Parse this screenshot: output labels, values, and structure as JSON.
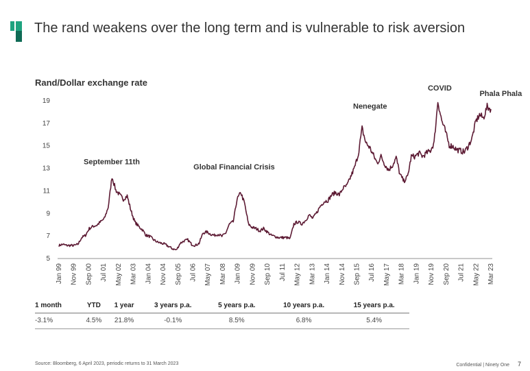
{
  "slide": {
    "title": "The rand weakens over the long term and is vulnerable to risk aversion",
    "logo": "ninety-one-logo-icon",
    "chart_heading": "Rand/Dollar exchange rate",
    "source": "Source: Bloomberg, 6 April 2023, periodic returns to 31 March 2023",
    "footer": "Confidential | Ninety One",
    "page_number": "7"
  },
  "colors": {
    "line": "#5c1a33",
    "logo_light": "#1fa37f",
    "logo_dark": "#0f6b55",
    "axis": "#c8c8c8"
  },
  "returns_table": {
    "headers": [
      "1 month",
      "YTD",
      "1 year",
      "3 years p.a.",
      "5 years p.a.",
      "10 years p.a.",
      "15 years p.a."
    ],
    "values": [
      "-3.1%",
      "4.5%",
      "21.8%",
      "-0.1%",
      "8.5%",
      "6.8%",
      "5.4%"
    ]
  },
  "chart_data": {
    "type": "line",
    "title": "Rand/Dollar exchange rate",
    "xlabel": "",
    "ylabel": "",
    "ylim": [
      5,
      19
    ],
    "yticks": [
      5,
      7,
      9,
      11,
      13,
      15,
      17,
      19
    ],
    "xticks": [
      "Jan 99",
      "Nov 99",
      "Sep 00",
      "Jul 01",
      "May 02",
      "Mar 03",
      "Jan 04",
      "Nov 04",
      "Sep 05",
      "Jul 06",
      "May 07",
      "Mar 08",
      "Jan 09",
      "Nov 09",
      "Sep 10",
      "Jul 11",
      "May 12",
      "Mar 13",
      "Jan 14",
      "Nov 14",
      "Sep 15",
      "Jul 16",
      "May 17",
      "Mar 18",
      "Jan 19",
      "Nov 19",
      "Sep 20",
      "Jul 21",
      "May 22",
      "Mar 23"
    ],
    "grid": false,
    "legend": "none",
    "x_start": "Jan 99",
    "x_end": "Mar 23",
    "frequency": "quarterly (approx.)",
    "series": [
      {
        "name": "USD/ZAR",
        "values": [
          6.1,
          6.2,
          6.1,
          6.1,
          6.1,
          6.2,
          6.8,
          7.0,
          7.6,
          7.8,
          7.9,
          8.2,
          8.5,
          9.5,
          12.2,
          11.0,
          10.6,
          10.2,
          10.5,
          9.2,
          8.2,
          7.8,
          7.5,
          7.0,
          6.9,
          6.6,
          6.4,
          6.3,
          6.2,
          6.0,
          5.8,
          5.7,
          6.3,
          6.5,
          6.6,
          6.2,
          6.1,
          6.3,
          7.2,
          7.3,
          7.1,
          7.0,
          7.1,
          6.9,
          7.2,
          8.0,
          8.2,
          10.2,
          10.8,
          9.8,
          8.0,
          7.7,
          7.6,
          7.4,
          7.6,
          7.3,
          7.0,
          6.9,
          6.8,
          6.8,
          6.8,
          6.7,
          8.0,
          8.2,
          8.0,
          8.3,
          8.8,
          8.5,
          9.0,
          9.6,
          10.0,
          10.1,
          10.6,
          10.8,
          10.6,
          11.2,
          11.4,
          12.2,
          13.0,
          14.2,
          16.5,
          15.2,
          14.8,
          14.1,
          13.4,
          14.0,
          13.3,
          12.8,
          13.2,
          13.9,
          12.4,
          11.8,
          12.2,
          14.0,
          14.0,
          14.3,
          14.0,
          14.3,
          14.5,
          15.2,
          18.9,
          17.2,
          16.2,
          15.0,
          14.9,
          14.6,
          14.5,
          14.4,
          14.9,
          15.6,
          17.1,
          17.7,
          17.4,
          18.4,
          18.2
        ]
      }
    ],
    "annotations": [
      {
        "label": "September 11th",
        "x": "Dec 01",
        "y": 12.2
      },
      {
        "label": "Global Financial Crisis",
        "x": "Oct 08",
        "y": 11.5
      },
      {
        "label": "Nenegate",
        "x": "Dec 15",
        "y": 16.9
      },
      {
        "label": "COVID",
        "x": "Apr 20",
        "y": 19.0
      },
      {
        "label": "Phala Phala",
        "x": "Dec 22",
        "y": 18.4
      }
    ]
  }
}
